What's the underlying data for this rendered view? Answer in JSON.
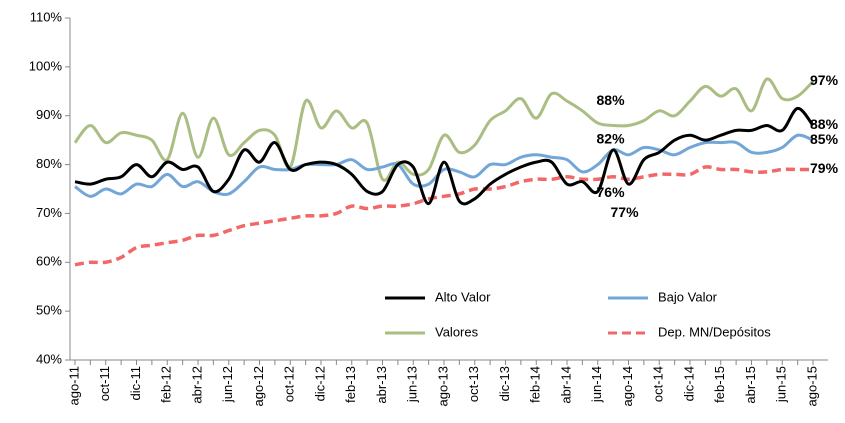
{
  "chart_data": {
    "type": "line",
    "categories": [
      "ago-11",
      null,
      "oct-11",
      null,
      "dic-11",
      null,
      "feb-12",
      null,
      "abr-12",
      null,
      "jun-12",
      null,
      "ago-12",
      null,
      "oct-12",
      null,
      "dic-12",
      null,
      "feb-13",
      null,
      "abr-13",
      null,
      "jun-13",
      null,
      "ago-13",
      null,
      "oct-13",
      null,
      "dic-13",
      null,
      "feb-14",
      null,
      "abr-14",
      null,
      "jun-14",
      null,
      "ago-14",
      null,
      "oct-14",
      null,
      "dic-14",
      null,
      "feb-15",
      null,
      "abr-15",
      null,
      "jun-15",
      null,
      "ago-15"
    ],
    "ylim": [
      40,
      110
    ],
    "yticks": [
      {
        "value": 40,
        "label": "40%"
      },
      {
        "value": 50,
        "label": "50%"
      },
      {
        "value": 60,
        "label": "60%"
      },
      {
        "value": 70,
        "label": "70%"
      },
      {
        "value": 80,
        "label": "80%"
      },
      {
        "value": 90,
        "label": "90%"
      },
      {
        "value": 100,
        "label": "100%"
      },
      {
        "value": 110,
        "label": "110%"
      }
    ],
    "legend": "lower right",
    "series": [
      {
        "name": "Alto Valor",
        "color": "#000000",
        "label_color": "#000000",
        "dashed": false,
        "values": [
          76.5,
          76,
          77,
          77.5,
          80,
          77.5,
          80.5,
          79,
          79.5,
          74.5,
          77,
          83,
          80.5,
          84.5,
          79,
          80,
          80.5,
          80,
          78,
          74.5,
          74.5,
          80,
          79.5,
          72,
          80.5,
          72.5,
          73,
          76,
          78,
          79.5,
          80.5,
          80.5,
          76,
          76.5,
          74.5,
          83,
          76,
          81,
          82.5,
          85,
          86,
          85,
          86,
          87,
          87,
          88,
          87,
          91.5,
          88
        ],
        "value_labels": [
          null,
          null,
          null,
          null,
          null,
          null,
          null,
          null,
          null,
          null,
          null,
          null,
          null,
          null,
          null,
          null,
          null,
          null,
          null,
          null,
          null,
          null,
          null,
          null,
          null,
          null,
          null,
          null,
          null,
          null,
          null,
          null,
          null,
          null,
          null,
          null,
          "76%",
          null,
          null,
          null,
          null,
          null,
          null,
          null,
          null,
          null,
          null,
          null,
          "88%"
        ]
      },
      {
        "name": "Bajo Valor",
        "color": "#72a6d9",
        "label_color": "#4a76a8",
        "dashed": false,
        "values": [
          75.5,
          73.5,
          75,
          74,
          76,
          75.5,
          78,
          75.5,
          76.5,
          74.5,
          74,
          76.5,
          79.5,
          79,
          79,
          80,
          80,
          80,
          81,
          79,
          79.5,
          80,
          76,
          76,
          79,
          78.5,
          77.5,
          80,
          80,
          81.5,
          82,
          81.5,
          81,
          78.5,
          80,
          83,
          82,
          83.5,
          83,
          82,
          83.5,
          84.5,
          84.5,
          84.5,
          82.5,
          82.5,
          83.5,
          86,
          85
        ],
        "value_labels": [
          null,
          null,
          null,
          null,
          null,
          null,
          null,
          null,
          null,
          null,
          null,
          null,
          null,
          null,
          null,
          null,
          null,
          null,
          null,
          null,
          null,
          null,
          null,
          null,
          null,
          null,
          null,
          null,
          null,
          null,
          null,
          null,
          null,
          null,
          null,
          null,
          "82%",
          null,
          null,
          null,
          null,
          null,
          null,
          null,
          null,
          null,
          null,
          null,
          "85%"
        ]
      },
      {
        "name": "Valores",
        "color": "#aabd83",
        "label_color": "#8aa650",
        "dashed": false,
        "values": [
          84.5,
          88,
          84.5,
          86.5,
          86,
          85,
          81,
          90.5,
          81.5,
          89.5,
          82,
          84.5,
          87,
          86,
          79.5,
          93,
          87.5,
          91,
          87.5,
          88.5,
          77,
          80.5,
          78,
          79,
          86,
          82.5,
          84,
          89,
          91,
          93.5,
          89.5,
          94.5,
          93,
          91,
          88.5,
          88,
          88,
          89,
          91,
          90,
          93,
          96,
          94,
          95.5,
          91,
          97.5,
          93.5,
          94,
          97
        ],
        "value_labels": [
          null,
          null,
          null,
          null,
          null,
          null,
          null,
          null,
          null,
          null,
          null,
          null,
          null,
          null,
          null,
          null,
          null,
          null,
          null,
          null,
          null,
          null,
          null,
          null,
          null,
          null,
          null,
          null,
          null,
          null,
          null,
          null,
          null,
          null,
          null,
          null,
          "88%",
          null,
          null,
          null,
          null,
          null,
          null,
          null,
          null,
          null,
          null,
          null,
          "97%"
        ]
      },
      {
        "name": "Dep. MN/Depósitos",
        "color": "#f26868",
        "label_color": "#e8141b",
        "dashed": true,
        "values": [
          59.5,
          60,
          60,
          61,
          63,
          63.5,
          64,
          64.5,
          65.5,
          65.5,
          66.5,
          67.5,
          68,
          68.5,
          69,
          69.5,
          69.5,
          70,
          71.5,
          71,
          71.5,
          71.5,
          72,
          73,
          73.5,
          74,
          75,
          75,
          75.5,
          76.5,
          77,
          77,
          77.5,
          77,
          77,
          77.5,
          77,
          77.5,
          78,
          78,
          78,
          79.5,
          79,
          79,
          78.5,
          78.5,
          79,
          79,
          79
        ],
        "value_labels": [
          null,
          null,
          null,
          null,
          null,
          null,
          null,
          null,
          null,
          null,
          null,
          null,
          null,
          null,
          null,
          null,
          null,
          null,
          null,
          null,
          null,
          null,
          null,
          null,
          null,
          null,
          null,
          null,
          null,
          null,
          null,
          null,
          null,
          null,
          null,
          null,
          "77%",
          null,
          null,
          null,
          null,
          null,
          null,
          null,
          null,
          null,
          null,
          null,
          "79%"
        ]
      }
    ]
  }
}
